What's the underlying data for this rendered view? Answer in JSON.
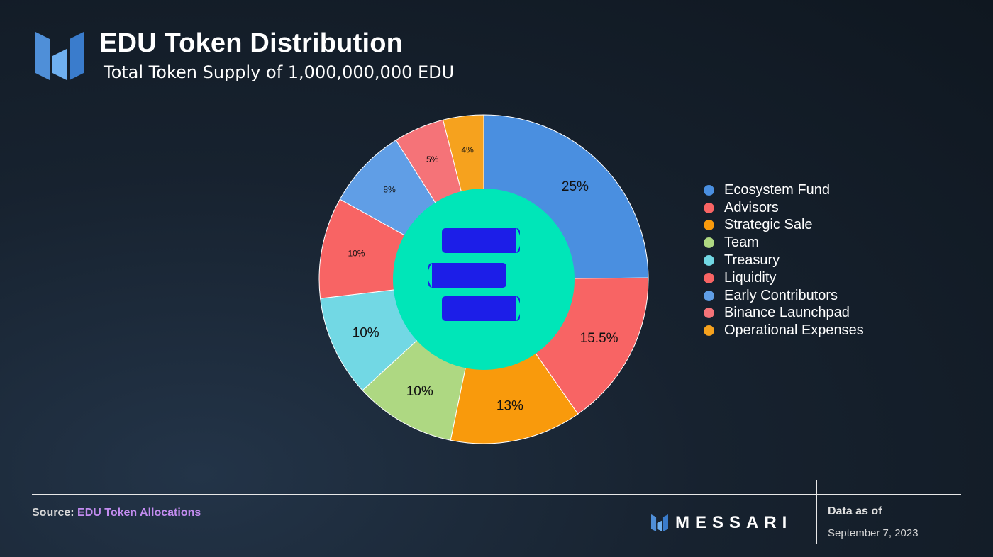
{
  "header": {
    "logo_icon": "messari-m-logo-icon",
    "title": "EDU Token Distribution",
    "subtitle": "Total Token Supply of 1,000,000,000 EDU"
  },
  "chart_data": {
    "type": "pie",
    "donut": true,
    "center_icon": "edu-token-logo-icon",
    "center_color": "#00e6b8",
    "categories": [
      "Ecosystem Fund",
      "Advisors",
      "Strategic Sale",
      "Team",
      "Treasury",
      "Liquidity",
      "Early Contributors",
      "Binance Launchpad",
      "Operational Expenses"
    ],
    "values": [
      25,
      15.5,
      13,
      10,
      10,
      10,
      8,
      5,
      4
    ],
    "labels": [
      "25%",
      "15.5%",
      "13%",
      "10%",
      "10%",
      "10%",
      "8%",
      "5%",
      "4%"
    ],
    "colors": [
      "#4a8fe0",
      "#f86464",
      "#f99a0c",
      "#aed882",
      "#72d8e4",
      "#f86464",
      "#609ee6",
      "#f57378",
      "#f6a21e"
    ],
    "legend_position": "right"
  },
  "footer": {
    "source_label": "Source:",
    "source_link": " EDU Token Allocations",
    "brand_icon": "messari-m-logo-icon",
    "brand_name": "MESSARI",
    "data_as_of_label": "Data as of",
    "data_as_of_date": "September 7, 2023"
  }
}
